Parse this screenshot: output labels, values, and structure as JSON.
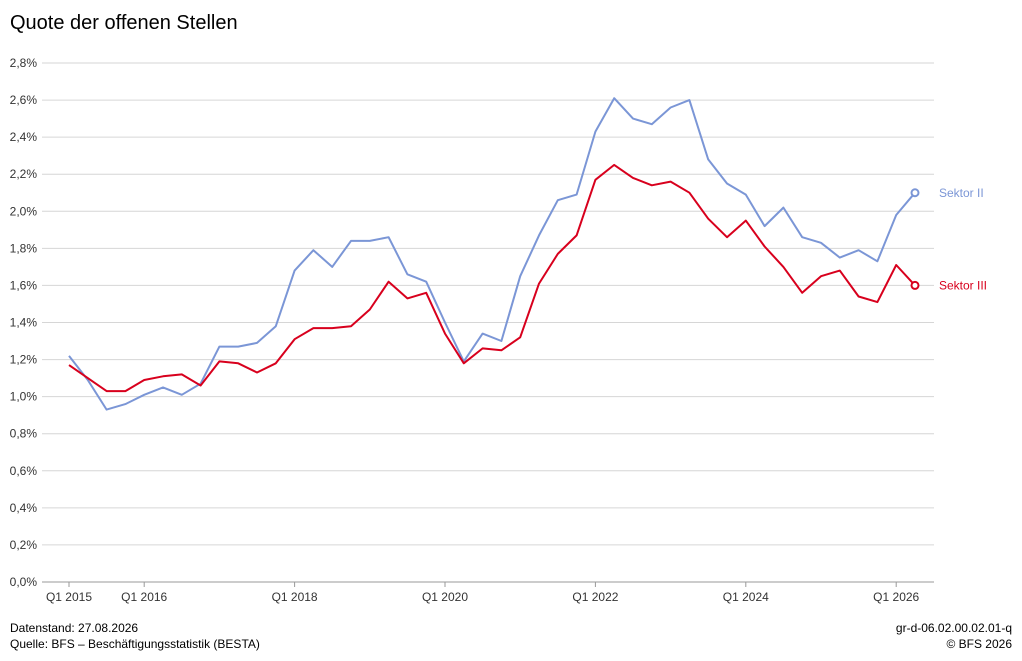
{
  "title": "Quote der offenen Stellen",
  "footer": {
    "datenstand": "Datenstand: 27.08.2026",
    "quelle": "Quelle: BFS – Beschäftigungsstatistik (BESTA)",
    "code": "gr-d-06.02.00.02.01-q",
    "copyright": "© BFS 2026"
  },
  "chart_data": {
    "type": "line",
    "title": "Quote der offenen Stellen",
    "xlabel": "",
    "ylabel": "",
    "ylim": [
      0,
      2.8
    ],
    "y_ticks": [
      "0,0%",
      "0,2%",
      "0,4%",
      "0,6%",
      "0,8%",
      "1,0%",
      "1,2%",
      "1,4%",
      "1,6%",
      "1,8%",
      "2,0%",
      "2,2%",
      "2,4%",
      "2,6%",
      "2,8%"
    ],
    "x_ticks": [
      "Q1 2015",
      "Q1 2016",
      "Q1 2018",
      "Q1 2020",
      "Q1 2022",
      "Q1 2024",
      "Q1 2026"
    ],
    "x_start": "Q1 2015",
    "x": [
      "Q1 2015",
      "Q2 2015",
      "Q3 2015",
      "Q4 2015",
      "Q1 2016",
      "Q2 2016",
      "Q3 2016",
      "Q4 2016",
      "Q1 2017",
      "Q2 2017",
      "Q3 2017",
      "Q4 2017",
      "Q1 2018",
      "Q2 2018",
      "Q3 2018",
      "Q4 2018",
      "Q1 2019",
      "Q2 2019",
      "Q3 2019",
      "Q4 2019",
      "Q1 2020",
      "Q2 2020",
      "Q3 2020",
      "Q4 2020",
      "Q1 2021",
      "Q2 2021",
      "Q3 2021",
      "Q4 2021",
      "Q1 2022",
      "Q2 2022",
      "Q3 2022",
      "Q4 2022",
      "Q1 2023",
      "Q2 2023",
      "Q3 2023",
      "Q4 2023",
      "Q1 2024",
      "Q2 2024",
      "Q3 2024",
      "Q4 2024",
      "Q1 2025",
      "Q2 2025",
      "Q3 2025",
      "Q4 2025",
      "Q1 2026",
      "Q2 2026"
    ],
    "grid": true,
    "legend": "inline right",
    "series": [
      {
        "name": "Sektor II",
        "color": "#7b96d6",
        "values": [
          1.22,
          1.09,
          0.93,
          0.96,
          1.01,
          1.05,
          1.01,
          1.07,
          1.27,
          1.27,
          1.29,
          1.38,
          1.68,
          1.79,
          1.7,
          1.84,
          1.84,
          1.86,
          1.66,
          1.62,
          1.4,
          1.19,
          1.34,
          1.3,
          1.65,
          1.87,
          2.06,
          2.09,
          2.43,
          2.61,
          2.5,
          2.47,
          2.56,
          2.6,
          2.28,
          2.15,
          2.09,
          1.92,
          2.02,
          1.86,
          1.83,
          1.75,
          1.79,
          1.73,
          1.98,
          2.1
        ]
      },
      {
        "name": "Sektor III",
        "color": "#d8001d",
        "values": [
          1.17,
          1.1,
          1.03,
          1.03,
          1.09,
          1.11,
          1.12,
          1.06,
          1.19,
          1.18,
          1.13,
          1.18,
          1.31,
          1.37,
          1.37,
          1.38,
          1.47,
          1.62,
          1.53,
          1.56,
          1.34,
          1.18,
          1.26,
          1.25,
          1.32,
          1.61,
          1.77,
          1.87,
          2.17,
          2.25,
          2.18,
          2.14,
          2.16,
          2.1,
          1.96,
          1.86,
          1.95,
          1.81,
          1.7,
          1.56,
          1.65,
          1.68,
          1.54,
          1.51,
          1.71,
          1.6
        ]
      }
    ]
  }
}
